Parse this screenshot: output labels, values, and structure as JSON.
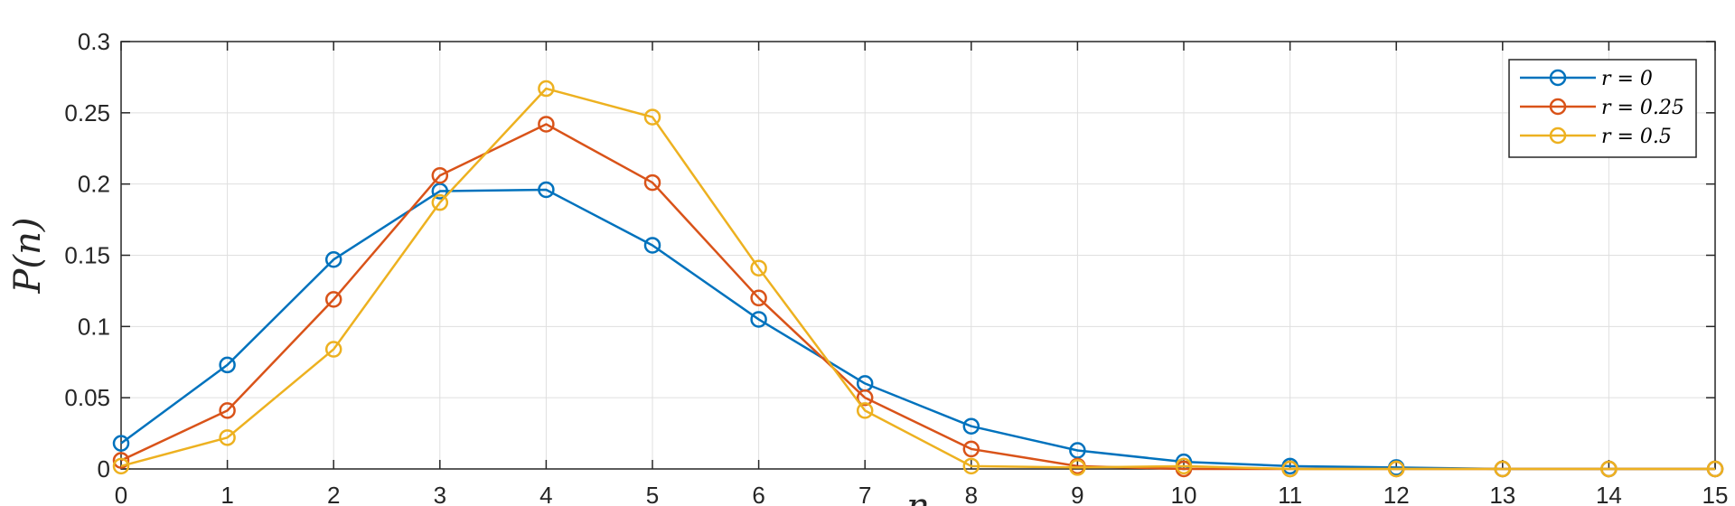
{
  "chart_data": {
    "type": "line",
    "title": "",
    "xlabel": "n",
    "ylabel": "P(n)",
    "xlim": [
      0,
      15
    ],
    "ylim": [
      0,
      0.3
    ],
    "x_ticks": [
      "0",
      "1",
      "2",
      "3",
      "4",
      "5",
      "6",
      "7",
      "8",
      "9",
      "10",
      "11",
      "12",
      "13",
      "14",
      "15"
    ],
    "y_ticks": [
      "0",
      "0.05",
      "0.1",
      "0.15",
      "0.2",
      "0.25",
      "0.3"
    ],
    "grid": true,
    "legend_position": "top-right",
    "x": [
      0,
      1,
      2,
      3,
      4,
      5,
      6,
      7,
      8,
      9,
      10,
      11,
      12,
      13,
      14,
      15
    ],
    "series": [
      {
        "name": "r = 0",
        "color": "#0072BD",
        "marker": "circle",
        "values": [
          0.018,
          0.073,
          0.147,
          0.195,
          0.196,
          0.157,
          0.105,
          0.06,
          0.03,
          0.013,
          0.005,
          0.002,
          0.001,
          0.0,
          0.0,
          0.0
        ]
      },
      {
        "name": "r = 0.25",
        "color": "#D95319",
        "marker": "circle",
        "values": [
          0.006,
          0.041,
          0.119,
          0.206,
          0.242,
          0.201,
          0.12,
          0.05,
          0.014,
          0.002,
          0.0,
          0.0,
          0.0,
          0.0,
          0.0,
          0.0
        ]
      },
      {
        "name": "r = 0.5",
        "color": "#EDB120",
        "marker": "circle",
        "values": [
          0.002,
          0.022,
          0.084,
          0.187,
          0.267,
          0.247,
          0.141,
          0.041,
          0.002,
          0.001,
          0.002,
          0.0,
          0.0,
          0.0,
          0.0,
          0.0
        ]
      }
    ]
  }
}
